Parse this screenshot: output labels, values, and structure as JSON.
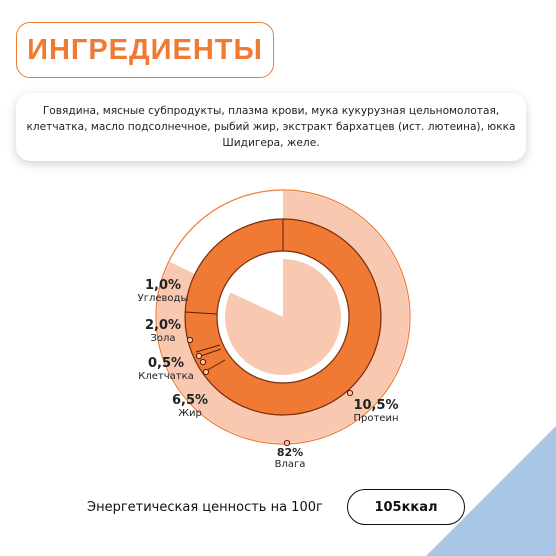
{
  "title": "ИНГРЕДИЕНТЫ",
  "ingredients_text": "Говядина, мясные субпродукты, плазма крови, мука кукурузная цельномолотая, клетчатка, масло подсолнечное, рыбий жир, экстракт бархатцев (ист. лютеина), юкка Шидигера, желе.",
  "chart_data": {
    "type": "pie",
    "series": [
      {
        "name": "Влага",
        "value": 82,
        "label": "82%"
      },
      {
        "name": "Протеин",
        "value": 10.5,
        "label": "10,5%"
      },
      {
        "name": "Жир",
        "value": 6.5,
        "label": "6,5%"
      },
      {
        "name": "Клетчатка",
        "value": 0.5,
        "label": "0,5%"
      },
      {
        "name": "Зола",
        "value": 2.0,
        "label": "2,0%"
      },
      {
        "name": "Углеводы",
        "value": 1.0,
        "label": "1,0%"
      }
    ]
  },
  "energy": {
    "label": "Энергетическая ценность на 100г",
    "value": "105ккал"
  },
  "colors": {
    "accent": "#f07a33",
    "light": "#f8c8b0",
    "corner": "#aac6e6"
  }
}
